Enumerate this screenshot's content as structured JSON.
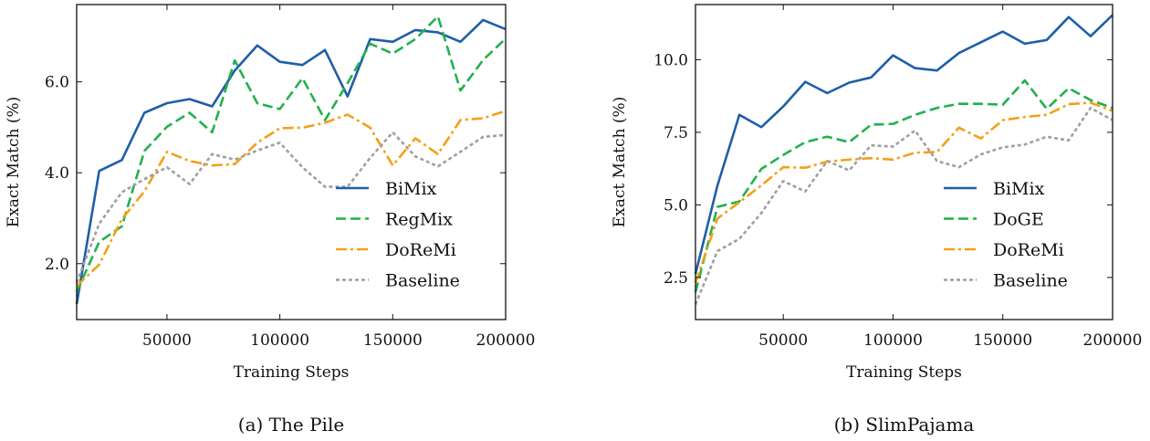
{
  "chart_data": [
    {
      "type": "line",
      "caption": "(a) The Pile",
      "xlabel": "Training Steps",
      "ylabel": "Exact Match (%)",
      "xlim": [
        10000,
        200000
      ],
      "ylim": [
        0.77,
        7.7
      ],
      "xticks": [
        50000,
        100000,
        150000,
        200000
      ],
      "xtick_labels": [
        "50000",
        "100000",
        "150000",
        "200000"
      ],
      "yticks": [
        2.0,
        4.0,
        6.0
      ],
      "ytick_labels": [
        "2.0",
        "4.0",
        "6.0"
      ],
      "legend_position": "lower-right",
      "x": [
        10000,
        20000,
        30000,
        40000,
        50000,
        60000,
        70000,
        80000,
        90000,
        100000,
        110000,
        120000,
        130000,
        140000,
        150000,
        160000,
        170000,
        180000,
        190000,
        200000
      ],
      "series": [
        {
          "name": "BiMix",
          "color": "#1f5ea8",
          "style": "solid",
          "values": [
            1.11,
            4.04,
            4.28,
            5.32,
            5.53,
            5.62,
            5.46,
            6.25,
            6.8,
            6.44,
            6.37,
            6.7,
            5.68,
            6.94,
            6.88,
            7.14,
            7.09,
            6.88,
            7.36,
            7.16
          ]
        },
        {
          "name": "RegMix",
          "color": "#22b14c",
          "style": "dashed",
          "values": [
            1.38,
            2.48,
            2.82,
            4.48,
            5.01,
            5.32,
            4.89,
            6.47,
            5.53,
            5.4,
            6.08,
            5.16,
            5.97,
            6.84,
            6.62,
            6.94,
            7.44,
            5.81,
            6.48,
            6.95
          ]
        },
        {
          "name": "DoReMi",
          "color": "#f59f17",
          "style": "dashdot",
          "values": [
            1.51,
            1.98,
            2.98,
            3.59,
            4.46,
            4.26,
            4.16,
            4.19,
            4.66,
            4.98,
            4.99,
            5.1,
            5.28,
            4.99,
            4.16,
            4.76,
            4.41,
            5.16,
            5.2,
            5.36
          ]
        },
        {
          "name": "Baseline",
          "color": "#a0a0a0",
          "style": "dotted",
          "values": [
            1.58,
            2.88,
            3.57,
            3.86,
            4.12,
            3.75,
            4.41,
            4.29,
            4.49,
            4.66,
            4.12,
            3.69,
            3.69,
            4.33,
            4.89,
            4.36,
            4.14,
            4.46,
            4.79,
            4.83
          ]
        }
      ]
    },
    {
      "type": "line",
      "caption": "(b) SlimPajama",
      "xlabel": "Training Steps",
      "ylabel": "Exact Match (%)",
      "xlim": [
        10000,
        200000
      ],
      "ylim": [
        1.05,
        11.9
      ],
      "xticks": [
        50000,
        100000,
        150000,
        200000
      ],
      "xtick_labels": [
        "50000",
        "100000",
        "150000",
        "200000"
      ],
      "yticks": [
        2.5,
        5.0,
        7.5,
        10.0
      ],
      "ytick_labels": [
        "2.5",
        "5.0",
        "7.5",
        "10.0"
      ],
      "legend_position": "lower-right",
      "x": [
        10000,
        20000,
        30000,
        40000,
        50000,
        60000,
        70000,
        80000,
        90000,
        100000,
        110000,
        120000,
        130000,
        140000,
        150000,
        160000,
        170000,
        180000,
        190000,
        200000
      ],
      "series": [
        {
          "name": "BiMix",
          "color": "#1f5ea8",
          "style": "solid",
          "values": [
            2.62,
            5.67,
            8.1,
            7.68,
            8.39,
            9.24,
            8.85,
            9.21,
            9.39,
            10.15,
            9.71,
            9.63,
            10.23,
            10.6,
            10.97,
            10.55,
            10.68,
            11.47,
            10.81,
            11.54
          ]
        },
        {
          "name": "DoGE",
          "color": "#22b14c",
          "style": "dashed",
          "values": [
            1.99,
            4.93,
            5.12,
            6.24,
            6.72,
            7.16,
            7.35,
            7.16,
            7.76,
            7.79,
            8.1,
            8.34,
            8.48,
            8.48,
            8.45,
            9.29,
            8.31,
            9.02,
            8.61,
            8.34
          ]
        },
        {
          "name": "DoReMi",
          "color": "#f59f17",
          "style": "dashdot",
          "values": [
            2.31,
            4.53,
            5.09,
            5.67,
            6.3,
            6.28,
            6.49,
            6.56,
            6.61,
            6.56,
            6.8,
            6.82,
            7.66,
            7.29,
            7.92,
            8.03,
            8.1,
            8.47,
            8.52,
            8.24
          ]
        },
        {
          "name": "Baseline",
          "color": "#a0a0a0",
          "style": "dotted",
          "values": [
            1.57,
            3.41,
            3.83,
            4.72,
            5.82,
            5.46,
            6.51,
            6.19,
            7.05,
            7.01,
            7.56,
            6.51,
            6.3,
            6.74,
            6.98,
            7.08,
            7.35,
            7.22,
            8.34,
            7.92
          ]
        }
      ]
    }
  ]
}
